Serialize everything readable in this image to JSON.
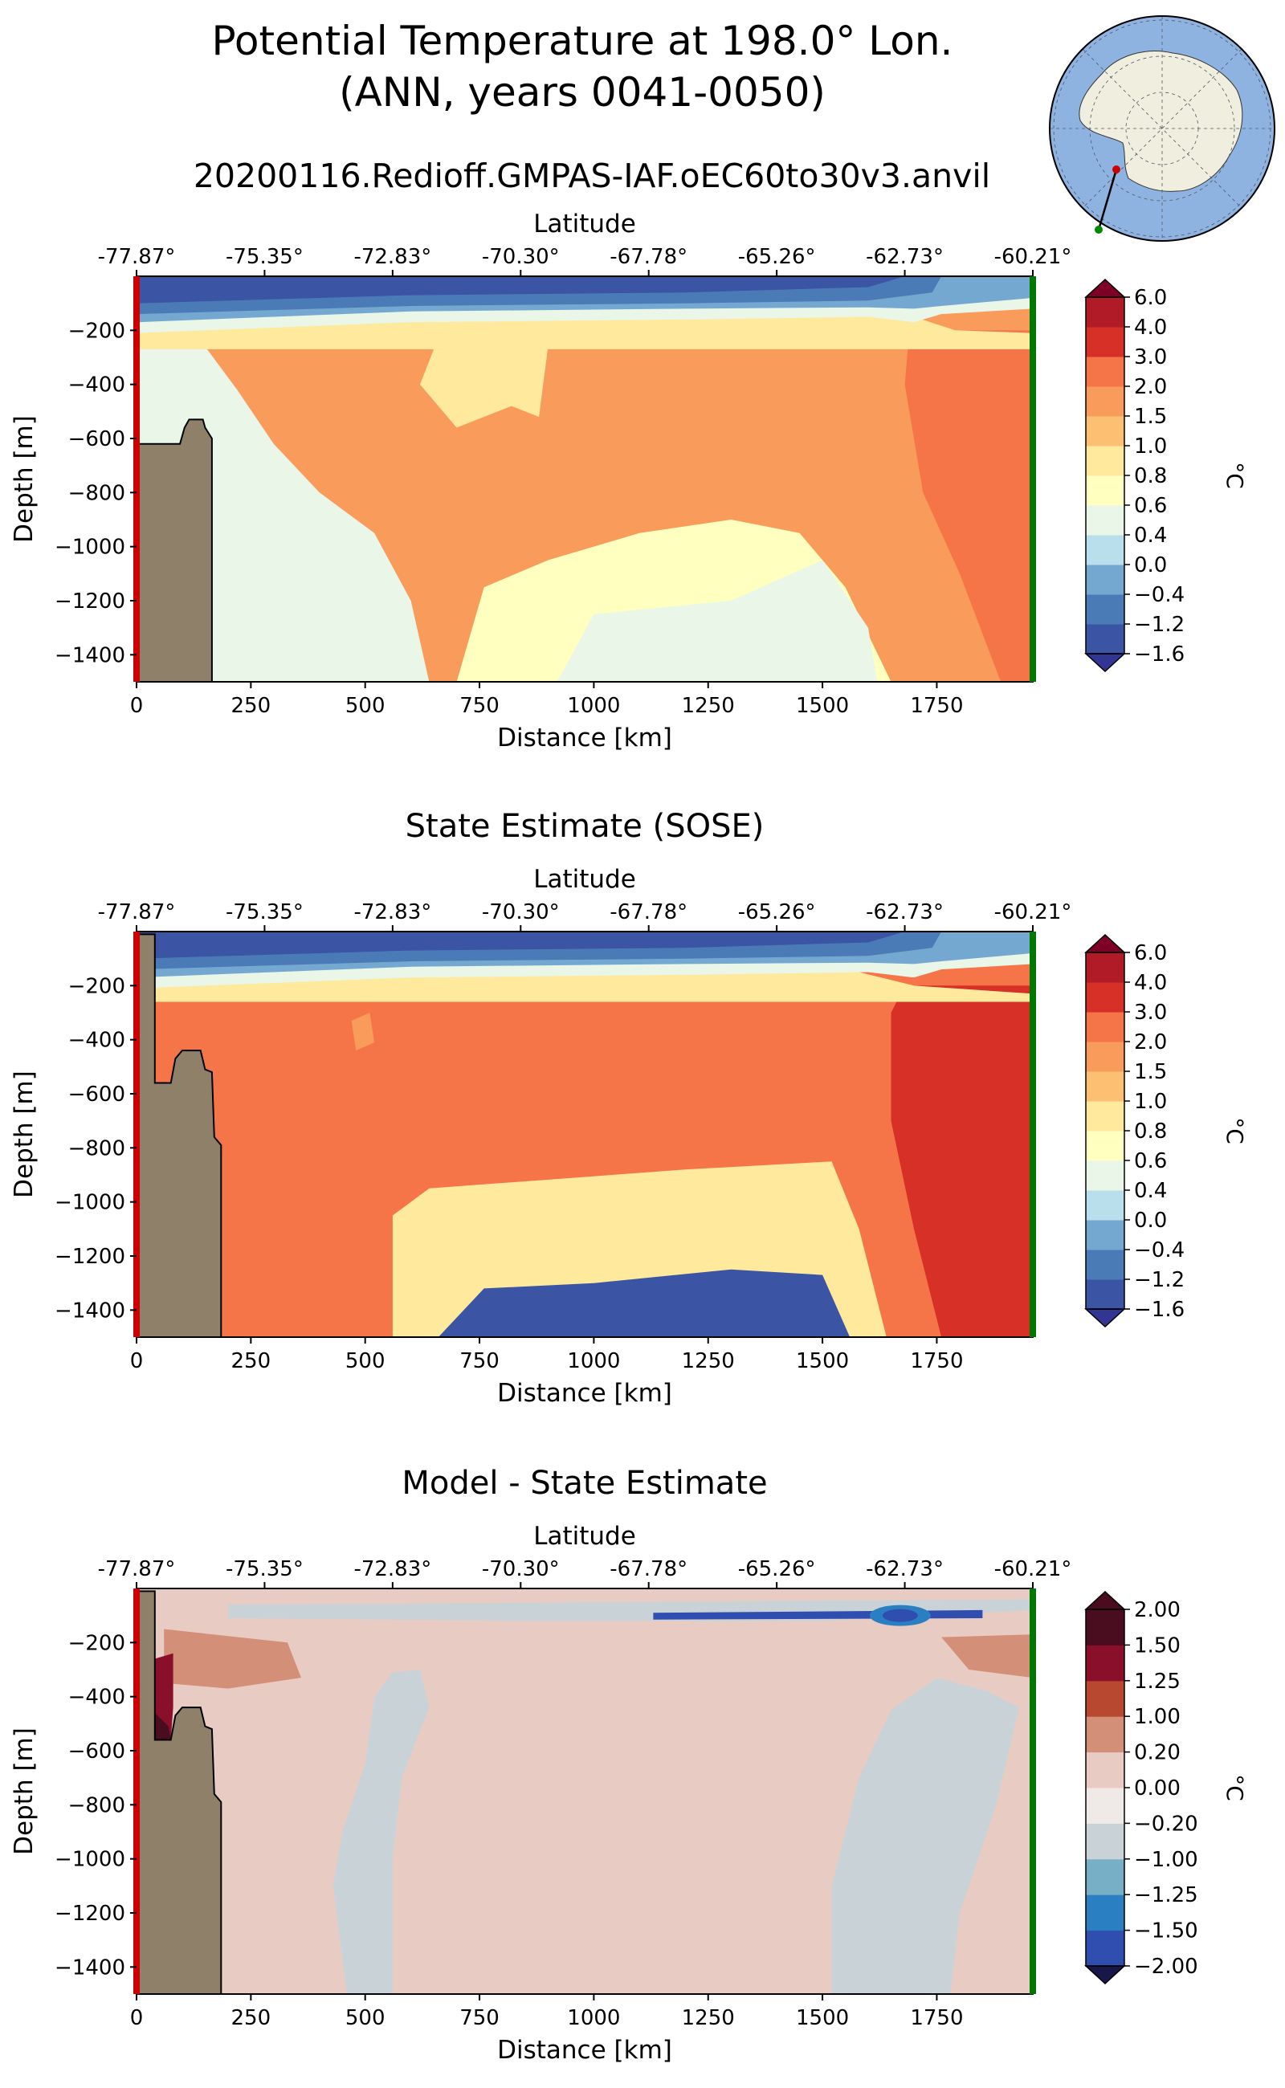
{
  "figure": {
    "title_line1": "Potential Temperature at 198.0° Lon.",
    "title_line2": "(ANN, years 0041-0050)",
    "run_name": "20200116.Redioff.GMPAS-IAF.oEC60to30v3.anvil"
  },
  "colors": {
    "land": "#8f8069",
    "section_start": "#cc0000",
    "section_end": "#007700",
    "ocean_map": "#8fb3e0",
    "land_map": "#efeedf"
  },
  "chart_data": [
    {
      "type": "heatmap",
      "panel": "model",
      "title": "",
      "xlabel": "Distance [km]",
      "ylabel": "Depth [m]",
      "top_axis_label": "Latitude",
      "xlim": [
        0,
        1960
      ],
      "ylim": [
        -1500,
        0
      ],
      "x_ticks": [
        0,
        250,
        500,
        750,
        1000,
        1250,
        1500,
        1750
      ],
      "y_ticks": [
        -200,
        -400,
        -600,
        -800,
        -1000,
        -1200,
        -1400
      ],
      "latitude_ticks": [
        "-77.87°",
        "-75.35°",
        "-72.83°",
        "-70.30°",
        "-67.78°",
        "-65.26°",
        "-62.73°",
        "-60.21°"
      ],
      "colorbar_label": "°C",
      "colorbar_levels": [
        "-1.6",
        "-1.2",
        "-0.4",
        "0.0",
        "0.4",
        "0.6",
        "0.8",
        "1.0",
        "1.5",
        "2.0",
        "3.0",
        "4.0",
        "6.0"
      ],
      "bathymetry": [
        [
          0,
          -1500
        ],
        [
          0,
          -620
        ],
        [
          95,
          -620
        ],
        [
          105,
          -560
        ],
        [
          115,
          -530
        ],
        [
          145,
          -530
        ],
        [
          150,
          -560
        ],
        [
          165,
          -600
        ],
        [
          165,
          -1500
        ]
      ],
      "field_zones": [
        {
          "value_c": 0.8,
          "region": "near-surface mixed layer below cold surface water"
        },
        {
          "value_c": 1.5,
          "region": "main body of section"
        },
        {
          "value_c": 1.8,
          "region": "warm patch near 370 km, -300 m"
        },
        {
          "value_c": 2.5,
          "region": "northern warm core, 1750-1960 km"
        },
        {
          "value_c": 0.7,
          "region": "deep water below -800 m"
        },
        {
          "value_c": 0.5,
          "region": "bottom water"
        },
        {
          "value_c": -1.6,
          "region": "surface cold layer, 0 to -150 m"
        }
      ]
    },
    {
      "type": "heatmap",
      "panel": "state_estimate",
      "title": "State Estimate (SOSE)",
      "xlabel": "Distance [km]",
      "ylabel": "Depth [m]",
      "top_axis_label": "Latitude",
      "xlim": [
        0,
        1960
      ],
      "ylim": [
        -1500,
        0
      ],
      "x_ticks": [
        0,
        250,
        500,
        750,
        1000,
        1250,
        1500,
        1750
      ],
      "y_ticks": [
        -200,
        -400,
        -600,
        -800,
        -1000,
        -1200,
        -1400
      ],
      "latitude_ticks": [
        "-77.87°",
        "-75.35°",
        "-72.83°",
        "-70.30°",
        "-67.78°",
        "-65.26°",
        "-62.73°",
        "-60.21°"
      ],
      "colorbar_label": "°C",
      "colorbar_levels": [
        "-1.6",
        "-1.2",
        "-0.4",
        "0.0",
        "0.4",
        "0.6",
        "0.8",
        "1.0",
        "1.5",
        "2.0",
        "3.0",
        "4.0",
        "6.0"
      ],
      "bathymetry": [
        [
          0,
          -1500
        ],
        [
          0,
          -10
        ],
        [
          40,
          -10
        ],
        [
          40,
          -560
        ],
        [
          75,
          -560
        ],
        [
          85,
          -470
        ],
        [
          100,
          -440
        ],
        [
          140,
          -440
        ],
        [
          150,
          -510
        ],
        [
          165,
          -520
        ],
        [
          170,
          -760
        ],
        [
          185,
          -790
        ],
        [
          185,
          -1500
        ]
      ],
      "field_zones": [
        {
          "value_c": 1.5,
          "region": "main body of section"
        },
        {
          "value_c": 2.5,
          "region": "northern warm core, 1680-1960 km"
        },
        {
          "value_c": 0.9,
          "region": "deep water below -900 m"
        },
        {
          "value_c": 0.7,
          "region": "bottom water"
        },
        {
          "value_c": -1.6,
          "region": "surface cold layer, 0 to -150 m"
        }
      ]
    },
    {
      "type": "heatmap",
      "panel": "difference",
      "title": "Model - State Estimate",
      "xlabel": "Distance [km]",
      "ylabel": "Depth [m]",
      "top_axis_label": "Latitude",
      "xlim": [
        0,
        1960
      ],
      "ylim": [
        -1500,
        0
      ],
      "x_ticks": [
        0,
        250,
        500,
        750,
        1000,
        1250,
        1500,
        1750
      ],
      "y_ticks": [
        -200,
        -400,
        -600,
        -800,
        -1000,
        -1200,
        -1400
      ],
      "latitude_ticks": [
        "-77.87°",
        "-75.35°",
        "-72.83°",
        "-70.30°",
        "-67.78°",
        "-65.26°",
        "-62.73°",
        "-60.21°"
      ],
      "colorbar_label": "°C",
      "colorbar_levels": [
        "-2.00",
        "-1.50",
        "-1.25",
        "-1.00",
        "-0.20",
        "0.00",
        "0.20",
        "1.00",
        "1.25",
        "1.50",
        "2.00"
      ],
      "bathymetry": [
        [
          0,
          -1500
        ],
        [
          0,
          -10
        ],
        [
          40,
          -10
        ],
        [
          40,
          -560
        ],
        [
          75,
          -560
        ],
        [
          85,
          -470
        ],
        [
          100,
          -440
        ],
        [
          140,
          -440
        ],
        [
          150,
          -510
        ],
        [
          165,
          -520
        ],
        [
          170,
          -760
        ],
        [
          185,
          -790
        ],
        [
          185,
          -1500
        ]
      ],
      "field_zones": [
        {
          "value_c": 0.0,
          "region": "most of section"
        },
        {
          "value_c": -0.5,
          "region": "deep band 440-620 km"
        },
        {
          "value_c": -0.5,
          "region": "deep band 1520-1930 km"
        },
        {
          "value_c": -1.7,
          "region": "thin layer near -100 m, 1130-1850 km"
        },
        {
          "value_c": -2.0,
          "region": "core near 1670 km, -100 m"
        },
        {
          "value_c": 1.3,
          "region": "shelf water near 40-80 km, -300 to -550 m"
        }
      ]
    }
  ]
}
